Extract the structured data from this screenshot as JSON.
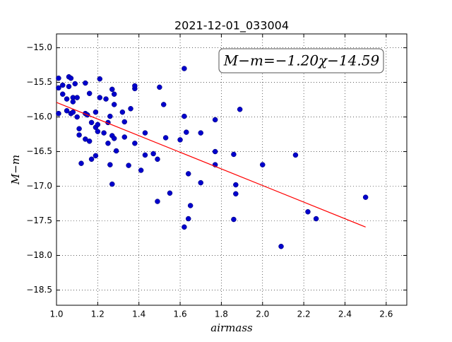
{
  "chart_data": {
    "type": "scatter",
    "title": "2021-12-01_033004",
    "xlabel": "airmass",
    "ylabel": "M−m",
    "annotation": "M−m=−1.20χ−14.59",
    "color": "#0000cc",
    "x": [
      1.01,
      1.01,
      1.01,
      1.03,
      1.03,
      1.05,
      1.06,
      1.06,
      1.07,
      1.05,
      1.07,
      1.08,
      1.08,
      1.08,
      1.09,
      1.1,
      1.1,
      1.11,
      1.11,
      1.12,
      1.14,
      1.14,
      1.14,
      1.15,
      1.16,
      1.16,
      1.17,
      1.17,
      1.19,
      1.19,
      1.19,
      1.2,
      1.2,
      1.21,
      1.21,
      1.23,
      1.24,
      1.25,
      1.25,
      1.26,
      1.26,
      1.27,
      1.28,
      1.28,
      1.27,
      1.28,
      1.27,
      1.29,
      1.32,
      1.33,
      1.33,
      1.35,
      1.36,
      1.38,
      1.38,
      1.38,
      1.41,
      1.43,
      1.43,
      1.47,
      1.49,
      1.49,
      1.5,
      1.52,
      1.53,
      1.55,
      1.6,
      1.62,
      1.62,
      1.62,
      1.63,
      1.64,
      1.64,
      1.65,
      1.7,
      1.7,
      1.77,
      1.77,
      1.77,
      1.86,
      1.86,
      1.87,
      1.87,
      1.89,
      2.0,
      2.09,
      2.16,
      2.22,
      2.26,
      2.5
    ],
    "values": [
      -15.95,
      -15.44,
      -15.58,
      -15.54,
      -15.67,
      -15.74,
      -15.56,
      -15.42,
      -15.44,
      -15.91,
      -15.95,
      -15.93,
      -15.72,
      -15.78,
      -15.52,
      -15.72,
      -16.0,
      -16.17,
      -16.26,
      -16.67,
      -15.51,
      -15.95,
      -16.32,
      -15.97,
      -15.66,
      -16.35,
      -16.08,
      -16.61,
      -15.93,
      -16.15,
      -16.56,
      -16.11,
      -16.21,
      -15.45,
      -15.72,
      -16.23,
      -15.74,
      -16.08,
      -16.38,
      -15.99,
      -16.69,
      -15.6,
      -15.67,
      -15.82,
      -16.27,
      -16.31,
      -16.97,
      -16.49,
      -15.93,
      -16.07,
      -16.29,
      -16.7,
      -15.88,
      -15.59,
      -15.55,
      -16.38,
      -16.77,
      -16.55,
      -16.23,
      -16.53,
      -16.61,
      -17.22,
      -15.57,
      -15.82,
      -16.3,
      -17.1,
      -16.33,
      -15.3,
      -17.59,
      -15.99,
      -16.22,
      -16.82,
      -17.47,
      -17.28,
      -16.23,
      -16.95,
      -16.04,
      -16.5,
      -16.69,
      -16.54,
      -17.48,
      -17.11,
      -16.98,
      -15.89,
      -16.69,
      -17.87,
      -16.55,
      -17.37,
      -17.47,
      -17.16
    ],
    "fit": {
      "color": "#ff0000",
      "x": [
        1.0,
        2.5
      ],
      "values": [
        -15.79,
        -17.59
      ]
    },
    "xlim": [
      1.0,
      2.7
    ],
    "ylim": [
      -18.72,
      -14.8
    ],
    "xticks": [
      {
        "value": 1.0,
        "label": "1.0"
      },
      {
        "value": 1.2,
        "label": "1.2"
      },
      {
        "value": 1.4,
        "label": "1.4"
      },
      {
        "value": 1.6,
        "label": "1.6"
      },
      {
        "value": 1.8,
        "label": "1.8"
      },
      {
        "value": 2.0,
        "label": "2.0"
      },
      {
        "value": 2.2,
        "label": "2.2"
      },
      {
        "value": 2.4,
        "label": "2.4"
      },
      {
        "value": 2.6,
        "label": "2.6"
      }
    ],
    "yticks": [
      {
        "value": -15.0,
        "label": "−15.0"
      },
      {
        "value": -15.5,
        "label": "−15.5"
      },
      {
        "value": -16.0,
        "label": "−16.0"
      },
      {
        "value": -16.5,
        "label": "−16.5"
      },
      {
        "value": -17.0,
        "label": "−17.0"
      },
      {
        "value": -17.5,
        "label": "−17.5"
      },
      {
        "value": -18.0,
        "label": "−18.0"
      },
      {
        "value": -18.5,
        "label": "−18.5"
      }
    ],
    "grid": true
  }
}
